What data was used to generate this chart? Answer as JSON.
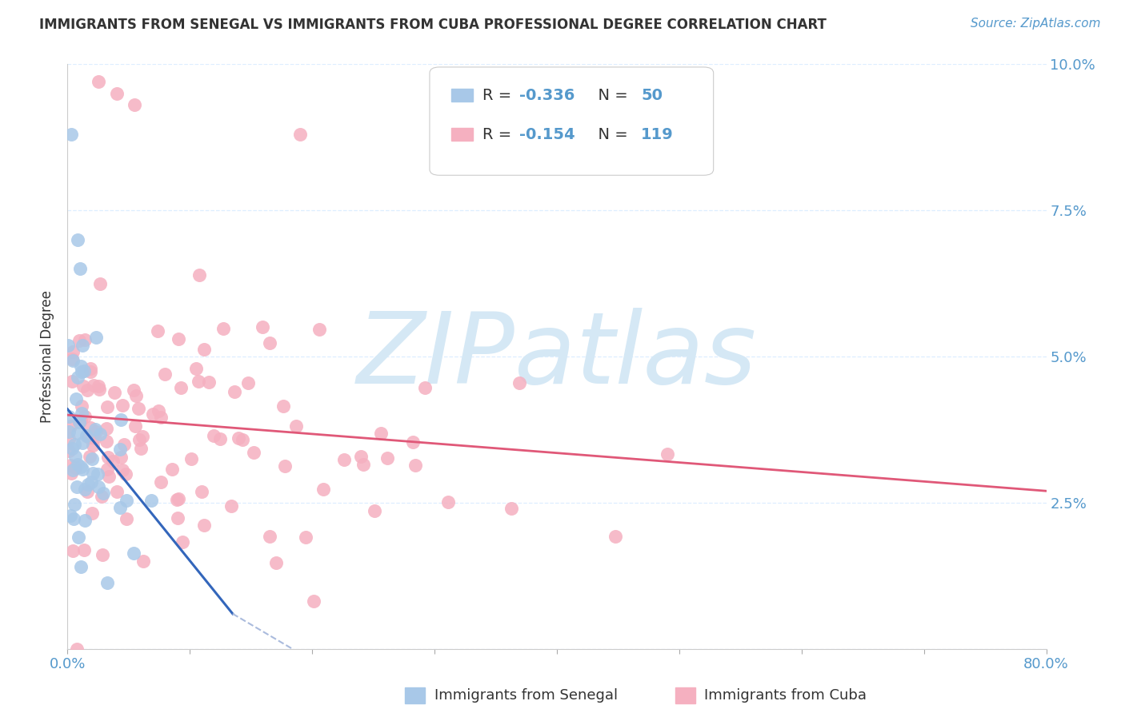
{
  "title": "IMMIGRANTS FROM SENEGAL VS IMMIGRANTS FROM CUBA PROFESSIONAL DEGREE CORRELATION CHART",
  "source": "Source: ZipAtlas.com",
  "ylabel_left": "Professional Degree",
  "senegal_R": -0.336,
  "senegal_N": 50,
  "cuba_R": -0.154,
  "cuba_N": 119,
  "senegal_color": "#a8c8e8",
  "cuba_color": "#f5b0c0",
  "senegal_line_color": "#3366bb",
  "cuba_line_color": "#e05878",
  "senegal_line_dash_color": "#aabbdd",
  "axis_label_color": "#5599cc",
  "text_color": "#333333",
  "background_color": "#ffffff",
  "grid_color": "#ddeeff",
  "watermark": "ZIPatlas",
  "watermark_color": "#d5e8f5",
  "xlim": [
    0.0,
    0.8
  ],
  "ylim": [
    0.0,
    0.1
  ],
  "x_ticks": [
    0.0,
    0.1,
    0.2,
    0.3,
    0.4,
    0.5,
    0.6,
    0.7,
    0.8
  ],
  "y_ticks": [
    0.0,
    0.025,
    0.05,
    0.075,
    0.1
  ],
  "title_fontsize": 12,
  "source_fontsize": 11,
  "tick_fontsize": 13,
  "ylabel_fontsize": 12,
  "legend_fontsize": 14,
  "watermark_fontsize": 90,
  "dot_size": 150
}
